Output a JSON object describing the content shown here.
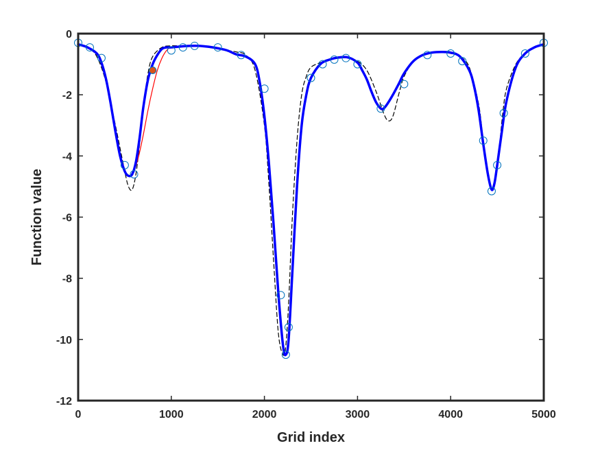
{
  "chart_data": {
    "type": "line",
    "xlabel": "Grid index",
    "ylabel": "Function value",
    "xlim": [
      0,
      5000
    ],
    "ylim": [
      -12,
      0
    ],
    "xticks": [
      0,
      1000,
      2000,
      3000,
      4000,
      5000
    ],
    "yticks": [
      0,
      -2,
      -4,
      -6,
      -8,
      -10,
      -12
    ],
    "grid": false,
    "legend": "none",
    "series": [
      {
        "style": "dashed",
        "color": "#000000",
        "x": [
          0,
          100,
          200,
          300,
          400,
          500,
          540,
          580,
          620,
          660,
          700,
          750,
          800,
          900,
          1000,
          1100,
          1200,
          1300,
          1400,
          1500,
          1600,
          1700,
          1800,
          1900,
          2000,
          2050,
          2100,
          2150,
          2200,
          2230,
          2260,
          2300,
          2350,
          2400,
          2450,
          2500,
          2600,
          2700,
          2800,
          2900,
          3000,
          3100,
          3200,
          3280,
          3330,
          3380,
          3450,
          3500,
          3600,
          3700,
          3800,
          3900,
          4000,
          4100,
          4200,
          4300,
          4350,
          4400,
          4440,
          4480,
          4520,
          4560,
          4600,
          4700,
          4800,
          4900,
          5000
        ],
        "y": [
          -0.35,
          -0.45,
          -0.75,
          -1.6,
          -3.0,
          -4.5,
          -5.0,
          -5.1,
          -4.6,
          -3.6,
          -2.4,
          -1.3,
          -0.75,
          -0.45,
          -0.4,
          -0.4,
          -0.4,
          -0.42,
          -0.45,
          -0.5,
          -0.55,
          -0.6,
          -0.7,
          -1.2,
          -3.0,
          -5.0,
          -7.5,
          -9.8,
          -10.5,
          -10.2,
          -8.8,
          -6.0,
          -3.5,
          -2.0,
          -1.4,
          -1.1,
          -0.95,
          -0.85,
          -0.8,
          -0.8,
          -0.9,
          -1.2,
          -1.9,
          -2.6,
          -2.85,
          -2.7,
          -1.9,
          -1.4,
          -0.9,
          -0.7,
          -0.62,
          -0.62,
          -0.65,
          -0.75,
          -1.1,
          -2.3,
          -3.5,
          -4.6,
          -5.1,
          -4.8,
          -3.8,
          -2.6,
          -1.8,
          -1.0,
          -0.65,
          -0.45,
          -0.35
        ]
      },
      {
        "style": "solid-thin",
        "color": "#ff0000",
        "x": [
          0,
          100,
          200,
          250,
          300,
          350,
          400,
          450,
          500,
          560,
          600,
          650,
          700,
          750,
          800,
          850,
          900,
          950,
          1000,
          1100,
          1200,
          1300,
          1400,
          1500,
          1600,
          1700,
          1800,
          1900,
          1950,
          2000,
          2050,
          2100,
          2150,
          2200,
          2230,
          2260,
          2300,
          2350,
          2400,
          2450,
          2500,
          2600,
          2700,
          2800,
          2900,
          3000,
          3050,
          3100,
          3150,
          3200,
          3250,
          3280,
          3320,
          3380,
          3450,
          3500,
          3600,
          3700,
          3800,
          3900,
          4000,
          4100,
          4200,
          4250,
          4300,
          4350,
          4400,
          4440,
          4470,
          4500,
          4550,
          4600,
          4700,
          4800,
          4900,
          5000
        ],
        "y": [
          -0.35,
          -0.45,
          -0.65,
          -0.95,
          -1.5,
          -2.3,
          -3.2,
          -4.0,
          -4.5,
          -4.65,
          -4.5,
          -4.0,
          -3.3,
          -2.5,
          -1.8,
          -1.2,
          -0.8,
          -0.55,
          -0.45,
          -0.42,
          -0.4,
          -0.4,
          -0.43,
          -0.48,
          -0.55,
          -0.68,
          -0.75,
          -1.0,
          -1.6,
          -2.7,
          -4.3,
          -6.3,
          -8.5,
          -10.2,
          -10.5,
          -10.0,
          -7.8,
          -5.0,
          -3.0,
          -2.0,
          -1.45,
          -1.0,
          -0.85,
          -0.78,
          -0.78,
          -0.95,
          -1.2,
          -1.5,
          -1.9,
          -2.25,
          -2.45,
          -2.45,
          -2.3,
          -2.0,
          -1.6,
          -1.3,
          -0.9,
          -0.7,
          -0.62,
          -0.6,
          -0.62,
          -0.75,
          -1.2,
          -1.7,
          -2.5,
          -3.6,
          -4.6,
          -5.1,
          -4.9,
          -4.3,
          -3.2,
          -2.2,
          -1.1,
          -0.65,
          -0.45,
          -0.35
        ]
      },
      {
        "style": "solid-thick",
        "color": "#0000ff",
        "x": [
          0,
          100,
          200,
          250,
          300,
          350,
          400,
          450,
          500,
          540,
          580,
          620,
          660,
          700,
          750,
          800,
          850,
          900,
          950,
          1000,
          1100,
          1200,
          1300,
          1400,
          1500,
          1600,
          1700,
          1800,
          1900,
          1950,
          2000,
          2050,
          2100,
          2150,
          2200,
          2230,
          2260,
          2300,
          2350,
          2400,
          2450,
          2500,
          2600,
          2700,
          2800,
          2900,
          3000,
          3050,
          3100,
          3150,
          3200,
          3250,
          3280,
          3320,
          3380,
          3450,
          3500,
          3600,
          3700,
          3800,
          3900,
          4000,
          4100,
          4200,
          4250,
          4300,
          4350,
          4400,
          4440,
          4470,
          4500,
          4550,
          4600,
          4700,
          4800,
          4900,
          5000
        ],
        "y": [
          -0.35,
          -0.45,
          -0.65,
          -0.95,
          -1.5,
          -2.3,
          -3.2,
          -4.0,
          -4.5,
          -4.65,
          -4.6,
          -4.2,
          -3.4,
          -2.4,
          -1.5,
          -1.0,
          -0.7,
          -0.5,
          -0.45,
          -0.45,
          -0.42,
          -0.4,
          -0.4,
          -0.43,
          -0.48,
          -0.55,
          -0.68,
          -0.75,
          -1.0,
          -1.6,
          -2.7,
          -4.3,
          -6.3,
          -8.5,
          -10.2,
          -10.5,
          -10.0,
          -7.8,
          -5.0,
          -3.0,
          -2.0,
          -1.45,
          -1.0,
          -0.85,
          -0.78,
          -0.78,
          -0.95,
          -1.2,
          -1.5,
          -1.9,
          -2.25,
          -2.45,
          -2.45,
          -2.3,
          -2.0,
          -1.6,
          -1.3,
          -0.9,
          -0.7,
          -0.62,
          -0.6,
          -0.62,
          -0.75,
          -1.2,
          -1.7,
          -2.5,
          -3.6,
          -4.6,
          -5.1,
          -4.9,
          -4.3,
          -3.2,
          -2.2,
          -1.1,
          -0.65,
          -0.45,
          -0.35
        ]
      },
      {
        "style": "circle-markers",
        "color": "#0072bd",
        "x": [
          0,
          125,
          250,
          500,
          600,
          1000,
          1125,
          1250,
          1500,
          1750,
          2000,
          2175,
          2230,
          2260,
          2500,
          2625,
          2750,
          2875,
          3000,
          3250,
          3500,
          3750,
          4000,
          4125,
          4350,
          4440,
          4500,
          4570,
          4800,
          5000
        ],
        "y": [
          -0.3,
          -0.45,
          -0.8,
          -4.3,
          -4.6,
          -0.55,
          -0.45,
          -0.4,
          -0.45,
          -0.7,
          -1.8,
          -8.55,
          -10.5,
          -9.6,
          -1.45,
          -1.0,
          -0.85,
          -0.8,
          -1.0,
          -2.45,
          -1.65,
          -0.7,
          -0.65,
          -0.9,
          -3.5,
          -5.15,
          -4.3,
          -2.6,
          -0.65,
          -0.3
        ]
      },
      {
        "style": "filled-marker",
        "color": "#d95319",
        "x": [
          800
        ],
        "y": [
          -1.2
        ]
      }
    ]
  }
}
